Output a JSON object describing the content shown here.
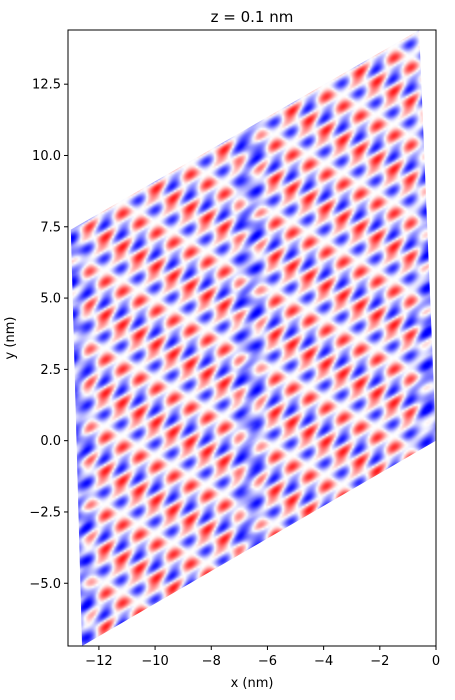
{
  "chart_data": {
    "type": "heatmap",
    "title": "z = 0.1 nm",
    "xlabel": "x (nm)",
    "ylabel": "y (nm)",
    "xlim": [
      -13.1,
      0.0
    ],
    "ylim": [
      -7.2,
      14.4
    ],
    "x_ticks": [
      -12,
      -10,
      -8,
      -6,
      -4,
      -2,
      0
    ],
    "x_tick_labels": [
      "−12",
      "−10",
      "−8",
      "−6",
      "−4",
      "−2",
      "0"
    ],
    "y_ticks": [
      -5.0,
      -2.5,
      0.0,
      2.5,
      5.0,
      7.5,
      10.0,
      12.5
    ],
    "y_tick_labels": [
      "−5.0",
      "−2.5",
      "0.0",
      "2.5",
      "5.0",
      "7.5",
      "10.0",
      "12.5"
    ],
    "region": {
      "shape": "parallelogram",
      "vertices": [
        [
          -13.0,
          7.4
        ],
        [
          -0.6,
          14.4
        ],
        [
          0.0,
          0.0
        ],
        [
          -12.6,
          -7.2
        ]
      ]
    },
    "colormap": {
      "negative": "#0000ff",
      "zero": "#ffffff",
      "positive": "#ff0000"
    },
    "grid": false,
    "legend": "none"
  }
}
